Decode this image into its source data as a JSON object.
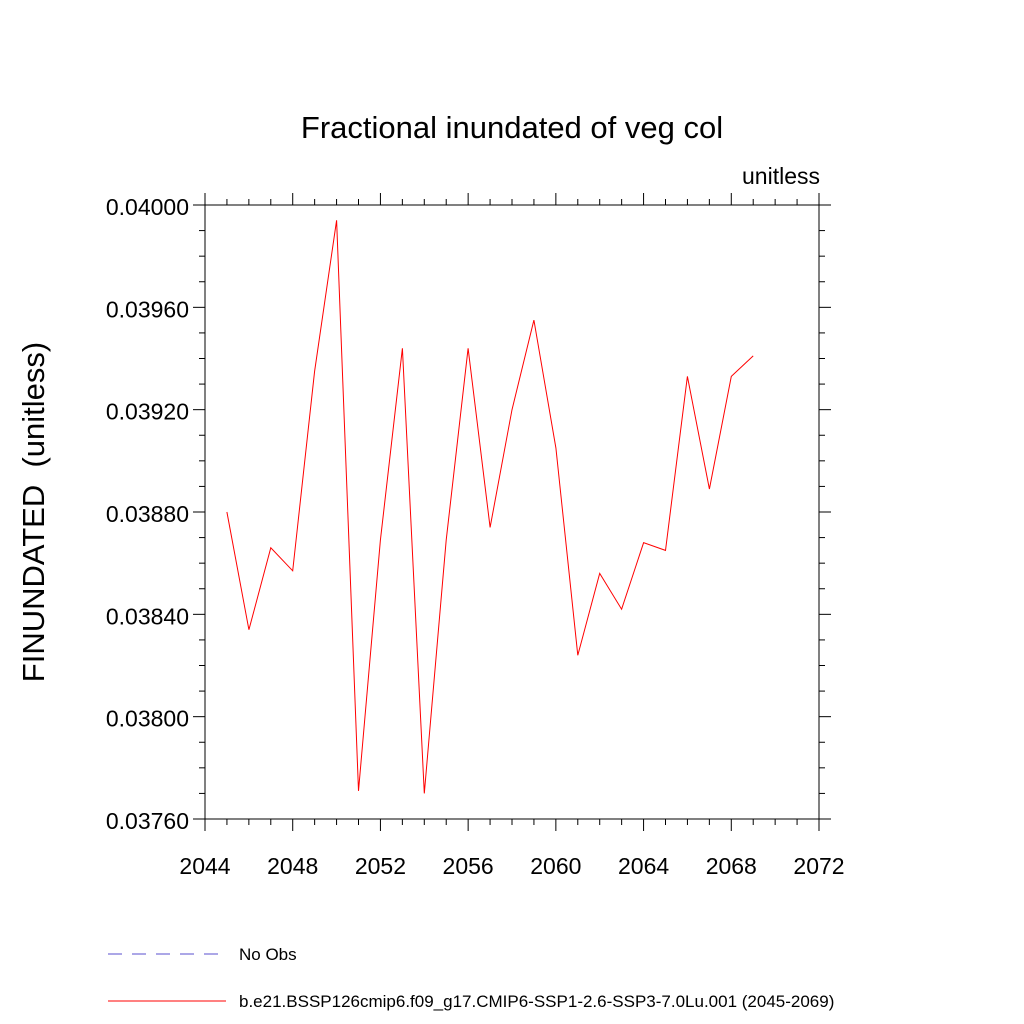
{
  "chart_data": {
    "type": "line",
    "title": "Fractional inundated of veg col",
    "units_label": "unitless",
    "ylabel": "FINUNDATED  (unitless)",
    "xlabel": "",
    "xlim": [
      2044,
      2072
    ],
    "ylim": [
      0.0376,
      0.04
    ],
    "x_ticks": [
      2044,
      2048,
      2052,
      2056,
      2060,
      2064,
      2068,
      2072
    ],
    "x_tick_labels": [
      "2044",
      "2048",
      "2052",
      "2056",
      "2060",
      "2064",
      "2068",
      "2072"
    ],
    "y_ticks": [
      0.0376,
      0.038,
      0.0384,
      0.0388,
      0.0392,
      0.0396,
      0.04
    ],
    "y_tick_labels": [
      "0.03760",
      "0.03800",
      "0.03840",
      "0.03880",
      "0.03920",
      "0.03960",
      "0.04000"
    ],
    "grid": false,
    "legend_position": "bottom",
    "series": [
      {
        "name": "b.e21.BSSP126cmip6.f09_g17.CMIP6-SSP1-2.6-SSP3-7.0Lu.001 (2045-2069)",
        "color": "#ff0000",
        "style": "solid",
        "x": [
          2045,
          2046,
          2047,
          2048,
          2049,
          2050,
          2051,
          2052,
          2053,
          2054,
          2055,
          2056,
          2057,
          2058,
          2059,
          2060,
          2061,
          2062,
          2063,
          2064,
          2065,
          2066,
          2067,
          2068,
          2069
        ],
        "values": [
          0.0388,
          0.03834,
          0.03866,
          0.03857,
          0.03935,
          0.03994,
          0.03771,
          0.03869,
          0.03944,
          0.0377,
          0.03869,
          0.03944,
          0.03874,
          0.0392,
          0.03955,
          0.03905,
          0.03824,
          0.03856,
          0.03842,
          0.03868,
          0.03865,
          0.03933,
          0.03889,
          0.03933,
          0.03941
        ]
      }
    ],
    "legend": [
      {
        "label": "No Obs",
        "color": "#5a4fcf",
        "style": "dashed"
      },
      {
        "label": "b.e21.BSSP126cmip6.f09_g17.CMIP6-SSP1-2.6-SSP3-7.0Lu.001 (2045-2069)",
        "color": "#ff0000",
        "style": "solid"
      }
    ]
  }
}
